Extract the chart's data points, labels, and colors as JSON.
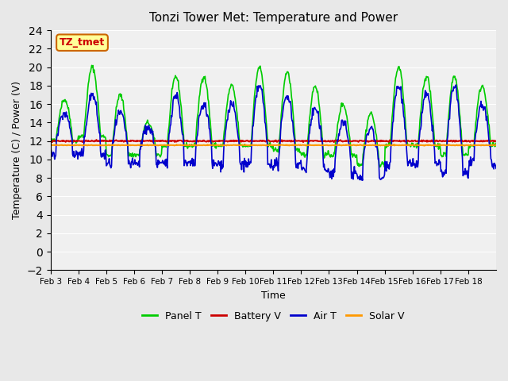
{
  "title": "Tonzi Tower Met: Temperature and Power",
  "xlabel": "Time",
  "ylabel": "Temperature (C) / Power (V)",
  "ylim": [
    -2,
    24
  ],
  "yticks": [
    -2,
    0,
    2,
    4,
    6,
    8,
    10,
    12,
    14,
    16,
    18,
    20,
    22,
    24
  ],
  "xtick_labels": [
    "Feb 3",
    "Feb 4",
    "Feb 5",
    "Feb 6",
    "Feb 7",
    "Feb 8",
    "Feb 9",
    "Feb 10",
    "Feb 11",
    "Feb 12",
    "Feb 13",
    "Feb 14",
    "Feb 15",
    "Feb 16",
    "Feb 17",
    "Feb 18"
  ],
  "battery_v": 12.0,
  "solar_v": 11.55,
  "panel_color": "#00cc00",
  "battery_color": "#cc0000",
  "air_color": "#0000cc",
  "solar_color": "#ff9900",
  "bg_color": "#e8e8e8",
  "plot_bg": "#f0f0f0",
  "annotation_text": "TZ_tmet",
  "annotation_color": "#cc0000",
  "annotation_bg": "#ffff99",
  "annotation_border": "#cc6600",
  "legend_labels": [
    "Panel T",
    "Battery V",
    "Air T",
    "Solar V"
  ],
  "panel_amps": [
    4,
    7,
    6,
    3,
    7,
    7,
    6,
    8,
    8,
    7,
    5,
    5,
    8,
    7,
    8,
    6
  ],
  "panel_bases": [
    12.5,
    13,
    11,
    11,
    12,
    12,
    12,
    12,
    11.5,
    11,
    11,
    10,
    12,
    12,
    11,
    12
  ],
  "air_amps": [
    3,
    5,
    4,
    2.5,
    6,
    5,
    5,
    7,
    6,
    5,
    4,
    4,
    7,
    6,
    8,
    5
  ],
  "air_bases": [
    12,
    12,
    11,
    11,
    11,
    11,
    11,
    11,
    11,
    10.5,
    10,
    9.5,
    11,
    11,
    10,
    11
  ]
}
